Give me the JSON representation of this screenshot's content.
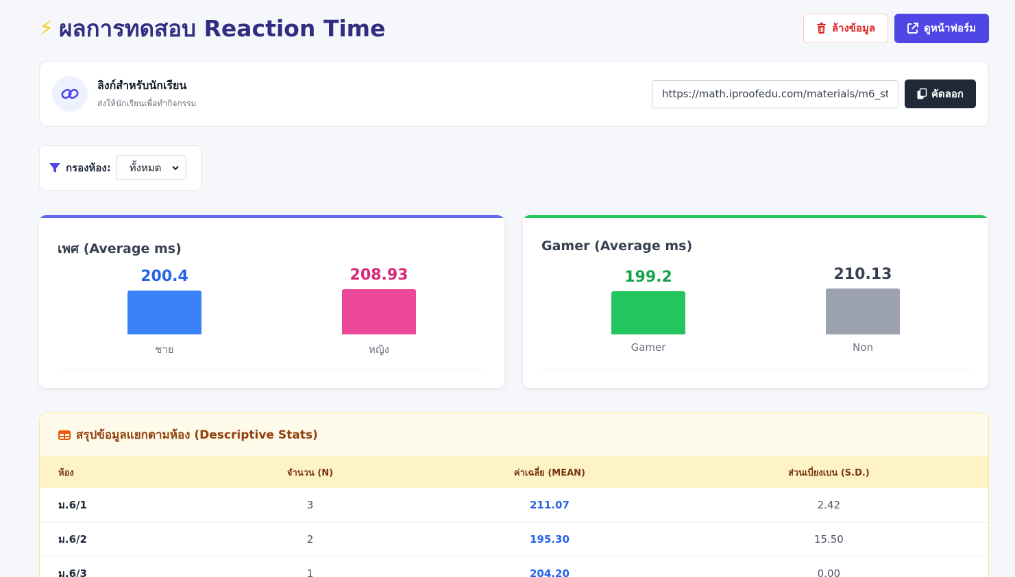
{
  "header": {
    "title": "ผลการทดสอบ Reaction Time",
    "clear_label": "ล้างข้อมูล",
    "form_label": "ดูหน้าฟอร์ม"
  },
  "link_card": {
    "title": "ลิงก์สำหรับนักเรียน",
    "subtitle": "ส่งให้นักเรียนเพื่อทำกิจกรรม",
    "url": "https://math.iproofedu.com/materials/m6_st",
    "copy_label": "คัดลอก"
  },
  "filter": {
    "label": "กรองห้อง:",
    "selected": "ทั้งหมด"
  },
  "chart_data": [
    {
      "type": "bar",
      "title": "เพศ (Average ms)",
      "categories": [
        "ชาย",
        "หญิง"
      ],
      "values": [
        200.4,
        208.93
      ],
      "colors": [
        "#3b82f6",
        "#ec4899"
      ],
      "label_colors": [
        "#2563eb",
        "#db2777"
      ],
      "accent": "#6366f1"
    },
    {
      "type": "bar",
      "title": "Gamer (Average ms)",
      "categories": [
        "Gamer",
        "Non"
      ],
      "values": [
        199.2,
        210.13
      ],
      "colors": [
        "#22c55e",
        "#9ca3af"
      ],
      "label_colors": [
        "#16a34a",
        "#374151"
      ],
      "accent": "#22c55e"
    }
  ],
  "stats": {
    "title": "สรุปข้อมูลแยกตามห้อง (Descriptive Stats)",
    "columns": [
      "ห้อง",
      "จำนวน (N)",
      "ค่าเฉลี่ย (MEAN)",
      "ส่วนเบี่ยงเบน (S.D.)"
    ],
    "rows": [
      {
        "room": "ม.6/1",
        "n": "3",
        "mean": "211.07",
        "sd": "2.42"
      },
      {
        "room": "ม.6/2",
        "n": "2",
        "mean": "195.30",
        "sd": "15.50"
      },
      {
        "room": "ม.6/3",
        "n": "1",
        "mean": "204.20",
        "sd": "0.00"
      }
    ]
  }
}
